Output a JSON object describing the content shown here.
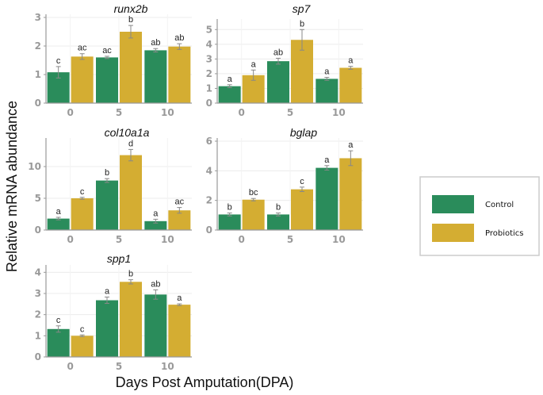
{
  "xlabel": "Days Post Amputation(DPA)",
  "ylabel": "Relative mRNA abundance",
  "legend": {
    "position": "right",
    "entries": [
      {
        "name": "Control",
        "color": "#2a8c5b"
      },
      {
        "name": "Probiotics",
        "color": "#d4ad32"
      }
    ]
  },
  "chart_data": [
    {
      "type": "bar",
      "title": "runx2b",
      "categories": [
        "0",
        "5",
        "10"
      ],
      "ylim": [
        0,
        3
      ],
      "yticks": [
        0,
        1,
        2,
        3
      ],
      "series": [
        {
          "name": "Control",
          "color": "#2a8c5b",
          "values": [
            1.08,
            1.6,
            1.85
          ],
          "errors": [
            0.2,
            0.04,
            0.06
          ],
          "labels": [
            "c",
            "ac",
            "ab"
          ]
        },
        {
          "name": "Probiotics",
          "color": "#d4ad32",
          "values": [
            1.63,
            2.5,
            1.98
          ],
          "errors": [
            0.1,
            0.22,
            0.1
          ],
          "labels": [
            "ac",
            "b",
            "ab"
          ]
        }
      ]
    },
    {
      "type": "bar",
      "title": "sp7",
      "categories": [
        "0",
        "5",
        "10"
      ],
      "ylim": [
        0,
        5.5
      ],
      "yticks": [
        0,
        1,
        2,
        3,
        4,
        5
      ],
      "series": [
        {
          "name": "Control",
          "color": "#2a8c5b",
          "values": [
            1.15,
            2.85,
            1.65
          ],
          "errors": [
            0.1,
            0.2,
            0.1
          ],
          "labels": [
            "a",
            "ab",
            "a"
          ]
        },
        {
          "name": "Probiotics",
          "color": "#d4ad32",
          "values": [
            1.9,
            4.3,
            2.4
          ],
          "errors": [
            0.35,
            0.7,
            0.1
          ],
          "labels": [
            "a",
            "b",
            "a"
          ]
        }
      ]
    },
    {
      "type": "bar",
      "title": "col10a1a",
      "categories": [
        "0",
        "5",
        "10"
      ],
      "ylim": [
        0,
        14
      ],
      "yticks": [
        0,
        5,
        10
      ],
      "series": [
        {
          "name": "Control",
          "color": "#2a8c5b",
          "values": [
            1.8,
            7.8,
            1.4
          ],
          "errors": [
            0.2,
            0.3,
            0.3
          ],
          "labels": [
            "a",
            "b",
            "a"
          ]
        },
        {
          "name": "Probiotics",
          "color": "#d4ad32",
          "values": [
            5.0,
            11.8,
            3.1
          ],
          "errors": [
            0.15,
            0.9,
            0.45
          ],
          "labels": [
            "c",
            "d",
            "ac"
          ]
        }
      ]
    },
    {
      "type": "bar",
      "title": "bglap",
      "categories": [
        "0",
        "5",
        "10"
      ],
      "ylim": [
        0,
        6
      ],
      "yticks": [
        0,
        2,
        4,
        6
      ],
      "series": [
        {
          "name": "Control",
          "color": "#2a8c5b",
          "values": [
            1.05,
            1.05,
            4.2
          ],
          "errors": [
            0.1,
            0.1,
            0.15
          ],
          "labels": [
            "b",
            "b",
            "a"
          ]
        },
        {
          "name": "Probiotics",
          "color": "#d4ad32",
          "values": [
            2.05,
            2.75,
            4.85
          ],
          "errors": [
            0.08,
            0.15,
            0.5
          ],
          "labels": [
            "bc",
            "c",
            "a"
          ]
        }
      ]
    },
    {
      "type": "bar",
      "title": "spp1",
      "categories": [
        "0",
        "5",
        "10"
      ],
      "ylim": [
        0,
        4.2
      ],
      "yticks": [
        0,
        1,
        2,
        3,
        4
      ],
      "series": [
        {
          "name": "Control",
          "color": "#2a8c5b",
          "values": [
            1.32,
            2.68,
            2.95
          ],
          "errors": [
            0.15,
            0.15,
            0.22
          ],
          "labels": [
            "c",
            "a",
            "ab"
          ]
        },
        {
          "name": "Probiotics",
          "color": "#d4ad32",
          "values": [
            1.0,
            3.55,
            2.47
          ],
          "errors": [
            0.04,
            0.1,
            0.04
          ],
          "labels": [
            "c",
            "b",
            "a"
          ]
        }
      ]
    }
  ]
}
